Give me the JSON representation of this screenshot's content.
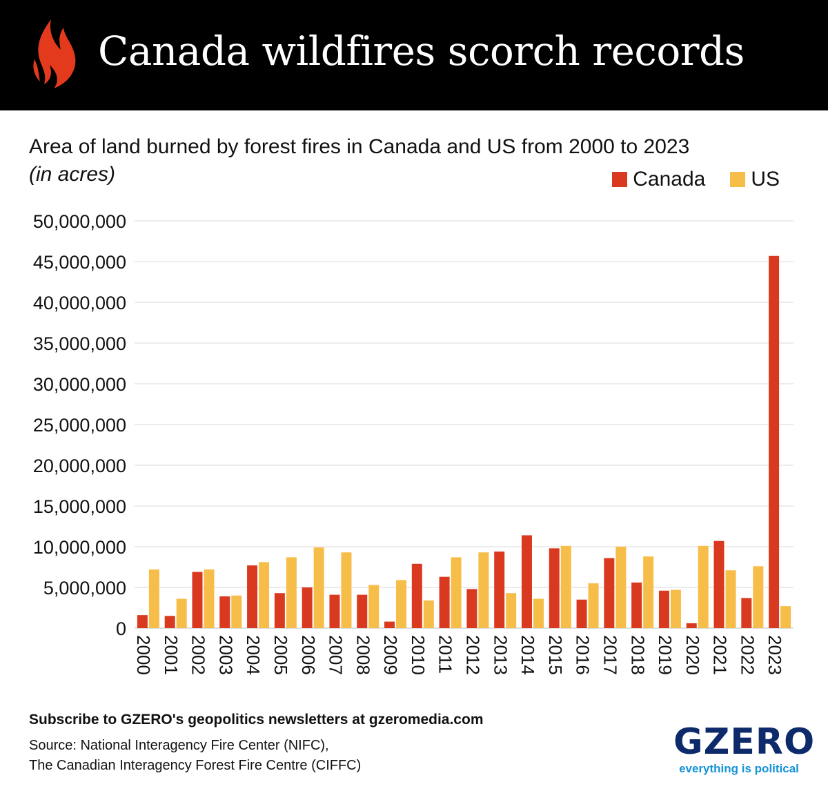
{
  "header": {
    "title": "Canada wildfires scorch records",
    "icon": "flame-icon",
    "icon_color": "#e33a1e",
    "background": "#000000"
  },
  "chart_data": {
    "type": "bar",
    "title": "Area of land burned by forest fires in Canada and US from 2000 to 2023",
    "unit_label": "(in acres)",
    "xlabel": "",
    "ylabel": "",
    "ylim": [
      0,
      50000000
    ],
    "yticks": [
      0,
      5000000,
      10000000,
      15000000,
      20000000,
      25000000,
      30000000,
      35000000,
      40000000,
      45000000,
      50000000
    ],
    "ytick_labels": [
      "0",
      "5,000,000",
      "10,000,000",
      "15,000,000",
      "20,000,000",
      "25,000,000",
      "30,000,000",
      "35,000,000",
      "40,000,000",
      "45,000,000",
      "50,000,000"
    ],
    "grid": true,
    "legend_position": "top-right",
    "categories": [
      "2000",
      "2001",
      "2002",
      "2003",
      "2004",
      "2005",
      "2006",
      "2007",
      "2008",
      "2009",
      "2010",
      "2011",
      "2012",
      "2013",
      "2014",
      "2015",
      "2016",
      "2017",
      "2018",
      "2019",
      "2020",
      "2021",
      "2022",
      "2023"
    ],
    "series": [
      {
        "name": "Canada",
        "color": "#d93a1f",
        "values": [
          1600000,
          1500000,
          6900000,
          3900000,
          7700000,
          4300000,
          5000000,
          4100000,
          4100000,
          800000,
          7900000,
          6300000,
          4800000,
          9400000,
          11400000,
          9800000,
          3500000,
          8600000,
          5600000,
          4600000,
          600000,
          10700000,
          3700000,
          45700000
        ]
      },
      {
        "name": "US",
        "color": "#f7bd49",
        "values": [
          7200000,
          3600000,
          7200000,
          4000000,
          8100000,
          8700000,
          9900000,
          9300000,
          5300000,
          5900000,
          3400000,
          8700000,
          9300000,
          4300000,
          3600000,
          10100000,
          5500000,
          10000000,
          8800000,
          4700000,
          10100000,
          7100000,
          7600000,
          2700000
        ]
      }
    ]
  },
  "legend": {
    "canada_label": "Canada",
    "us_label": "US"
  },
  "footer": {
    "cta": "Subscribe to GZERO's geopolitics newsletters at gzeromedia.com",
    "source_line1": "Source: National Interagency Fire Center (NIFC),",
    "source_line2": "The Canadian Interagency Forest Fire Centre (CIFFC)",
    "logo_text": "GZERO",
    "logo_tagline": "everything is political",
    "logo_color": "#0d2a6b",
    "tagline_color": "#1493d6"
  }
}
